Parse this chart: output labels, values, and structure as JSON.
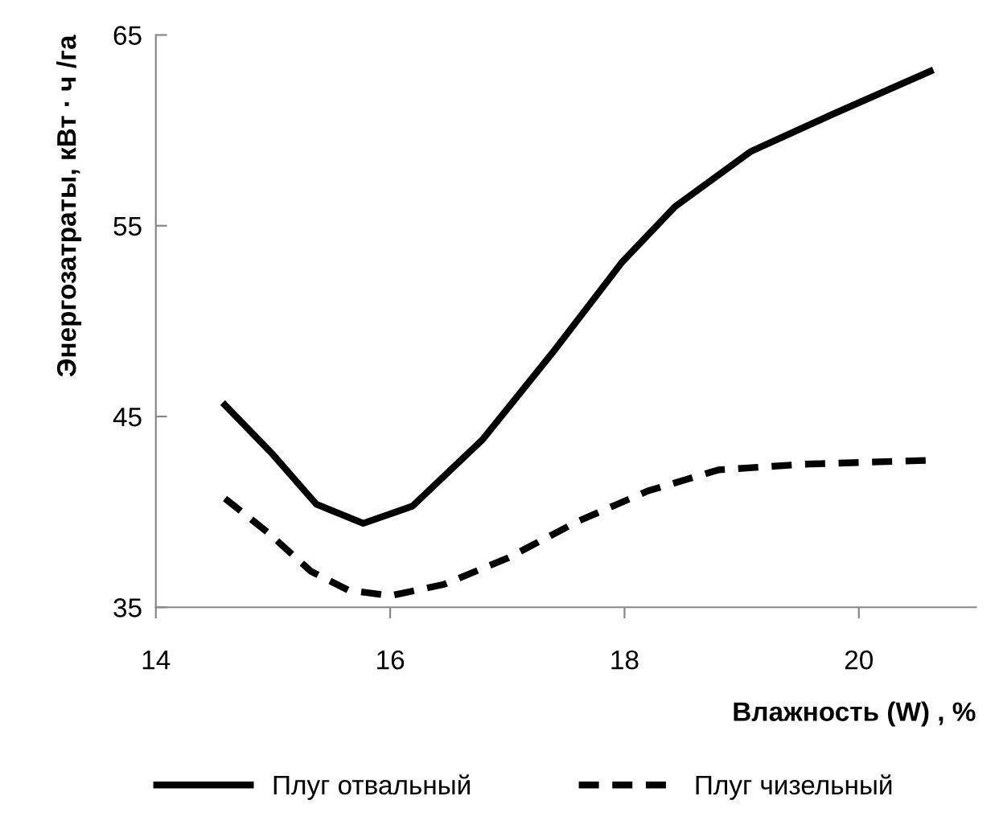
{
  "chart_data": {
    "type": "line",
    "xlabel": "Влажность (W) , %",
    "ylabel": "Энергозатраты, кВт · ч /га",
    "xlim": [
      14,
      21
    ],
    "xticks": [
      14,
      16,
      18,
      20
    ],
    "ylim": [
      35,
      65
    ],
    "yticks": [
      35,
      45,
      55,
      65
    ],
    "grid": false,
    "legend": "bottom",
    "marker": "none",
    "series": [
      {
        "name": "Плуг отвальный",
        "color": "#000000",
        "line_style": "solid",
        "x": [
          14.59,
          15.0,
          15.37,
          15.77,
          16.19,
          16.79,
          17.38,
          17.98,
          18.43,
          19.08,
          19.76,
          20.61
        ],
        "values": [
          45.6,
          43.0,
          40.4,
          39.4,
          40.3,
          43.8,
          48.3,
          53.1,
          56.0,
          58.9,
          60.8,
          63.1
        ]
      },
      {
        "name": "Плуг чизельный",
        "color": "#000000",
        "line_style": "dashed",
        "x": [
          14.59,
          14.96,
          15.32,
          15.64,
          16.0,
          16.46,
          17.01,
          17.6,
          18.2,
          18.8,
          19.53,
          20.59
        ],
        "values": [
          40.7,
          38.9,
          36.9,
          35.9,
          35.6,
          36.2,
          37.6,
          39.5,
          41.1,
          42.2,
          42.5,
          42.7
        ]
      }
    ]
  }
}
